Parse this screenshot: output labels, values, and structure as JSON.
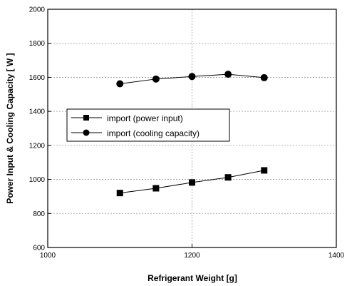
{
  "chart_data": {
    "type": "line",
    "xlabel": "Refrigerant Weight [g]",
    "ylabel": "Power Input & Cooling Capacity [ W ]",
    "xlim": [
      1000,
      1400
    ],
    "ylim": [
      600,
      2000
    ],
    "xticks": [
      1000,
      1200,
      1400
    ],
    "yticks": [
      600,
      800,
      1000,
      1200,
      1400,
      1600,
      1800,
      2000
    ],
    "grid": true,
    "legend_position": "center-left",
    "series": [
      {
        "name": "import (power input)",
        "marker": "square",
        "x": [
          1100,
          1150,
          1200,
          1250,
          1300
        ],
        "y": [
          920,
          948,
          982,
          1012,
          1053
        ]
      },
      {
        "name": "import (cooling capacity)",
        "marker": "circle",
        "x": [
          1100,
          1150,
          1200,
          1250,
          1300
        ],
        "y": [
          1562,
          1590,
          1605,
          1618,
          1598
        ]
      }
    ]
  }
}
